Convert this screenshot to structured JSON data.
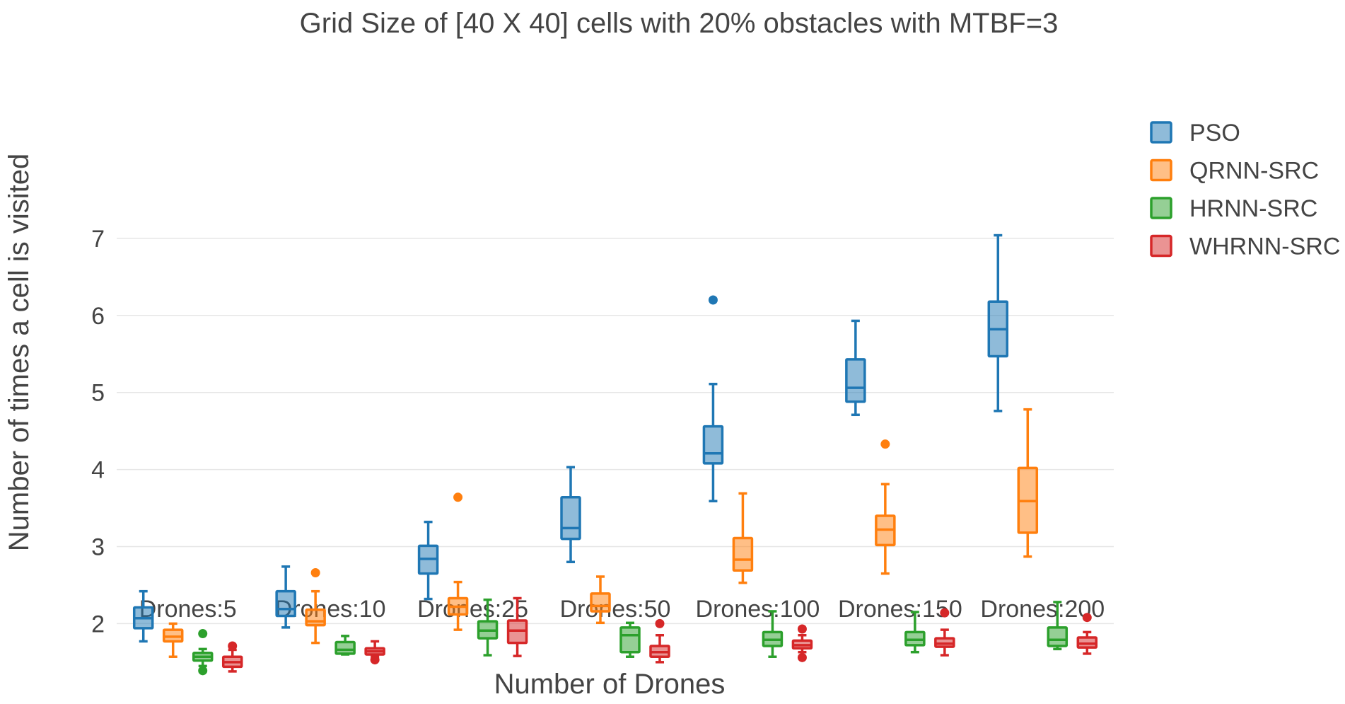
{
  "chart_data": {
    "type": "box",
    "title": "Grid Size of [40 X 40] cells with 20% obstacles with MTBF=3",
    "xlabel": "Number of Drones",
    "ylabel": "Number of times a cell is visited",
    "ylim": [
      1.2,
      7.2
    ],
    "yticks": [
      2,
      3,
      4,
      5,
      6,
      7
    ],
    "grid": true,
    "legend_position": "top-right",
    "categories": [
      "Drones:5",
      "Drones:10",
      "Drones:25",
      "Drones:50",
      "Drones:100",
      "Drones:150",
      "Drones:200"
    ],
    "series": [
      {
        "name": "PSO",
        "color": "#1f77b4",
        "boxes": [
          {
            "min": 1.77,
            "q1": 1.94,
            "median": 2.07,
            "q3": 2.21,
            "max": 2.42,
            "outliers": []
          },
          {
            "min": 1.95,
            "q1": 2.1,
            "median": 2.19,
            "q3": 2.42,
            "max": 2.74,
            "outliers": []
          },
          {
            "min": 2.32,
            "q1": 2.65,
            "median": 2.84,
            "q3": 3.01,
            "max": 3.32,
            "outliers": []
          },
          {
            "min": 2.8,
            "q1": 3.1,
            "median": 3.24,
            "q3": 3.64,
            "max": 4.03,
            "outliers": []
          },
          {
            "min": 3.59,
            "q1": 4.08,
            "median": 4.21,
            "q3": 4.56,
            "max": 5.11,
            "outliers": [
              6.2
            ]
          },
          {
            "min": 4.71,
            "q1": 4.88,
            "median": 5.06,
            "q3": 5.43,
            "max": 5.93,
            "outliers": []
          },
          {
            "min": 4.76,
            "q1": 5.47,
            "median": 5.82,
            "q3": 6.18,
            "max": 7.04,
            "outliers": []
          }
        ]
      },
      {
        "name": "QRNN-SRC",
        "color": "#ff7f0e",
        "boxes": [
          {
            "min": 1.57,
            "q1": 1.77,
            "median": 1.83,
            "q3": 1.92,
            "max": 2.0,
            "outliers": []
          },
          {
            "min": 1.75,
            "q1": 1.98,
            "median": 2.03,
            "q3": 2.18,
            "max": 2.42,
            "outliers": [
              2.66
            ]
          },
          {
            "min": 1.92,
            "q1": 2.12,
            "median": 2.22,
            "q3": 2.33,
            "max": 2.54,
            "outliers": [
              3.64
            ]
          },
          {
            "min": 2.01,
            "q1": 2.16,
            "median": 2.23,
            "q3": 2.39,
            "max": 2.61,
            "outliers": []
          },
          {
            "min": 2.53,
            "q1": 2.69,
            "median": 2.83,
            "q3": 3.11,
            "max": 3.69,
            "outliers": []
          },
          {
            "min": 2.65,
            "q1": 3.02,
            "median": 3.22,
            "q3": 3.4,
            "max": 3.81,
            "outliers": [
              4.33
            ]
          },
          {
            "min": 2.87,
            "q1": 3.18,
            "median": 3.59,
            "q3": 4.02,
            "max": 4.78,
            "outliers": []
          }
        ]
      },
      {
        "name": "HRNN-SRC",
        "color": "#2ca02c",
        "boxes": [
          {
            "min": 1.45,
            "q1": 1.52,
            "median": 1.57,
            "q3": 1.62,
            "max": 1.67,
            "outliers": [
              1.87,
              1.39
            ]
          },
          {
            "min": 1.6,
            "q1": 1.61,
            "median": 1.66,
            "q3": 1.76,
            "max": 1.84,
            "outliers": []
          },
          {
            "min": 1.59,
            "q1": 1.81,
            "median": 1.91,
            "q3": 2.03,
            "max": 2.31,
            "outliers": []
          },
          {
            "min": 1.57,
            "q1": 1.63,
            "median": 1.85,
            "q3": 1.95,
            "max": 2.01,
            "outliers": []
          },
          {
            "min": 1.57,
            "q1": 1.71,
            "median": 1.79,
            "q3": 1.89,
            "max": 2.16,
            "outliers": []
          },
          {
            "min": 1.63,
            "q1": 1.72,
            "median": 1.79,
            "q3": 1.89,
            "max": 2.15,
            "outliers": []
          },
          {
            "min": 1.67,
            "q1": 1.71,
            "median": 1.79,
            "q3": 1.95,
            "max": 2.28,
            "outliers": []
          }
        ]
      },
      {
        "name": "WHRNN-SRC",
        "color": "#d62728",
        "boxes": [
          {
            "min": 1.38,
            "q1": 1.44,
            "median": 1.5,
            "q3": 1.57,
            "max": 1.66,
            "outliers": [
              1.71
            ]
          },
          {
            "min": 1.57,
            "q1": 1.6,
            "median": 1.64,
            "q3": 1.68,
            "max": 1.77,
            "outliers": [
              1.53
            ]
          },
          {
            "min": 1.58,
            "q1": 1.75,
            "median": 1.91,
            "q3": 2.04,
            "max": 2.33,
            "outliers": []
          },
          {
            "min": 1.5,
            "q1": 1.57,
            "median": 1.63,
            "q3": 1.71,
            "max": 1.85,
            "outliers": [
              2.0
            ]
          },
          {
            "min": 1.63,
            "q1": 1.68,
            "median": 1.72,
            "q3": 1.78,
            "max": 1.85,
            "outliers": [
              1.93,
              1.56
            ]
          },
          {
            "min": 1.59,
            "q1": 1.7,
            "median": 1.74,
            "q3": 1.81,
            "max": 1.92,
            "outliers": [
              2.14
            ]
          },
          {
            "min": 1.61,
            "q1": 1.69,
            "median": 1.74,
            "q3": 1.82,
            "max": 1.89,
            "outliers": [
              2.08
            ]
          }
        ]
      }
    ]
  }
}
